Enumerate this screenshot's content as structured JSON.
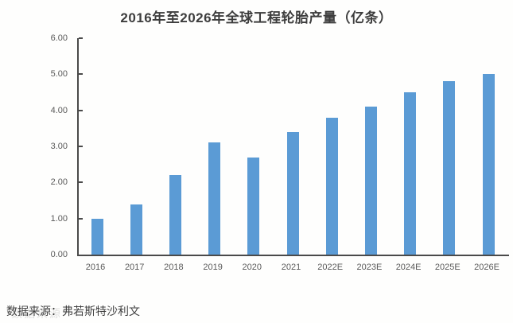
{
  "title": "2016年至2026年全球工程轮胎产量（亿条）",
  "source": {
    "label": "数据来源：弗若斯特沙利文",
    "ghost_overlap": "数据来源"
  },
  "colors": {
    "bar": "#5b9bd5",
    "axis": "#4a4a4a",
    "tick_text": "#595959",
    "title_text": "#3d3d3d"
  },
  "chart_data": {
    "type": "bar",
    "title": "2016年至2026年全球工程轮胎产量（亿条）",
    "categories": [
      "2016",
      "2017",
      "2018",
      "2019",
      "2020",
      "2021",
      "2022E",
      "2023E",
      "2024E",
      "2025E",
      "2026E"
    ],
    "values": [
      1.0,
      1.4,
      2.2,
      3.1,
      2.7,
      3.4,
      3.8,
      4.1,
      4.5,
      4.8,
      5.0
    ],
    "xlabel": "",
    "ylabel": "",
    "ylim": [
      0,
      6
    ],
    "ytick_labels": [
      "0.00",
      "1.00",
      "2.00",
      "3.00",
      "4.00",
      "5.00",
      "6.00"
    ],
    "ytick_values": [
      0,
      1,
      2,
      3,
      4,
      5,
      6
    ],
    "grid": false,
    "legend": "none",
    "bar_color": "#5b9bd5"
  }
}
